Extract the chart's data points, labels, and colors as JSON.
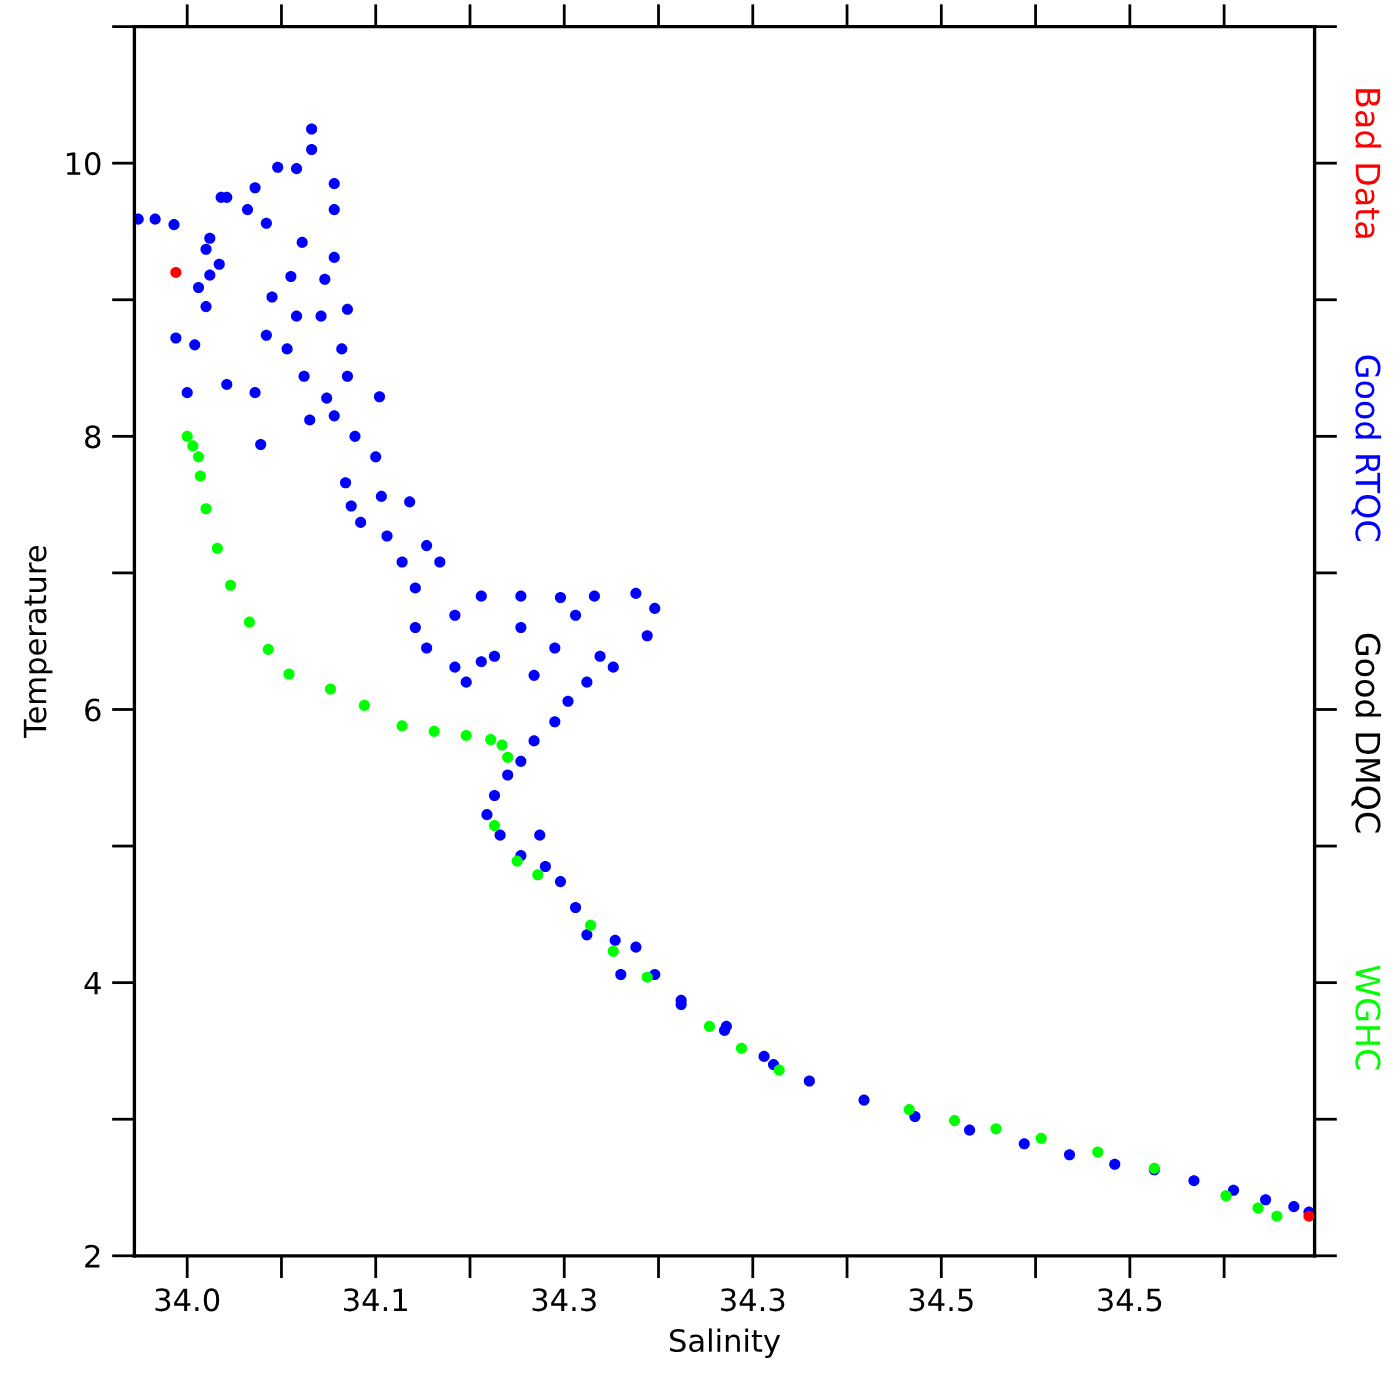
{
  "chart_data": {
    "type": "scatter",
    "xlabel": "Salinity",
    "ylabel": "Temperature",
    "xlim": [
      34.022,
      34.648
    ],
    "ylim": [
      2,
      11
    ],
    "xticks": [
      {
        "value": 34.05,
        "label": "34.0"
      },
      {
        "value": 34.1,
        "label": null
      },
      {
        "value": 34.15,
        "label": "34.1"
      },
      {
        "value": 34.2,
        "label": null
      },
      {
        "value": 34.25,
        "label": "34.3"
      },
      {
        "value": 34.3,
        "label": null
      },
      {
        "value": 34.35,
        "label": "34.3"
      },
      {
        "value": 34.4,
        "label": null
      },
      {
        "value": 34.45,
        "label": "34.5"
      },
      {
        "value": 34.5,
        "label": null
      },
      {
        "value": 34.55,
        "label": "34.5"
      },
      {
        "value": 34.6,
        "label": null
      }
    ],
    "yticks": [
      2,
      {
        "value": 3,
        "label": null
      },
      4,
      {
        "value": 5,
        "label": null
      },
      6,
      {
        "value": 7,
        "label": null
      },
      8,
      {
        "value": 9,
        "label": null
      },
      10,
      {
        "value": 11,
        "label": null
      }
    ],
    "marker": "circle",
    "legend": "right",
    "series": [
      {
        "name": "Bad Data",
        "color": "#ff0000",
        "x": [
          34.044,
          34.645
        ],
        "values": [
          9.2,
          2.29
        ]
      },
      {
        "name": "Good RTQC",
        "color": "#0000ff",
        "x": [
          34.024,
          34.033,
          34.043,
          34.062,
          34.06,
          34.068,
          34.071,
          34.086,
          34.098,
          34.108,
          34.116,
          34.116,
          34.128,
          34.128,
          34.082,
          34.092,
          34.111,
          34.128,
          34.105,
          34.095,
          34.108,
          34.121,
          34.092,
          34.103,
          34.135,
          34.132,
          34.112,
          34.071,
          34.086,
          34.05,
          34.044,
          34.054,
          34.06,
          34.056,
          34.067,
          34.062,
          34.089,
          34.115,
          34.124,
          34.135,
          34.128,
          34.139,
          34.134,
          34.15,
          34.153,
          34.168,
          34.137,
          34.142,
          34.156,
          34.164,
          34.177,
          34.171,
          34.184,
          34.171,
          34.177,
          34.192,
          34.206,
          34.227,
          34.248,
          34.266,
          34.288,
          34.298,
          34.294,
          34.269,
          34.245,
          34.213,
          34.192,
          34.227,
          34.256,
          34.276,
          34.152,
          34.123,
          34.262,
          34.252,
          34.245,
          34.234,
          34.227,
          34.22,
          34.213,
          34.209,
          34.216,
          34.227,
          34.237,
          34.24,
          34.248,
          34.256,
          34.262,
          34.277,
          34.288,
          34.28,
          34.298,
          34.312,
          34.336,
          34.198,
          34.234,
          34.206,
          34.312,
          34.335,
          34.356,
          34.361,
          34.38,
          34.409,
          34.436,
          34.465,
          34.494,
          34.518,
          34.542,
          34.563,
          34.584,
          34.605,
          34.622,
          34.637,
          34.645
        ],
        "values": [
          9.59,
          9.59,
          9.55,
          9.45,
          9.37,
          9.75,
          9.75,
          9.82,
          9.97,
          9.96,
          10.25,
          10.1,
          9.85,
          9.66,
          9.66,
          9.56,
          9.42,
          9.31,
          9.17,
          9.02,
          8.88,
          8.88,
          8.74,
          8.64,
          8.93,
          8.64,
          8.44,
          8.38,
          8.32,
          8.32,
          8.72,
          8.67,
          8.95,
          9.09,
          9.26,
          9.18,
          7.94,
          8.12,
          8.28,
          8.44,
          8.15,
          8.0,
          7.66,
          7.85,
          7.56,
          7.52,
          7.49,
          7.37,
          7.27,
          7.08,
          7.2,
          6.89,
          7.08,
          6.6,
          6.45,
          6.69,
          6.83,
          6.83,
          6.82,
          6.83,
          6.85,
          6.74,
          6.54,
          6.39,
          6.45,
          6.39,
          6.31,
          6.6,
          6.69,
          6.31,
          8.29,
          9.15,
          6.2,
          6.06,
          5.91,
          5.77,
          5.62,
          5.52,
          5.37,
          5.23,
          5.08,
          4.93,
          5.08,
          4.85,
          4.74,
          4.55,
          4.35,
          4.31,
          4.26,
          4.06,
          4.06,
          3.87,
          3.68,
          6.2,
          6.25,
          6.35,
          3.84,
          3.65,
          3.46,
          3.4,
          3.28,
          3.14,
          3.02,
          2.92,
          2.82,
          2.74,
          2.67,
          2.63,
          2.55,
          2.48,
          2.41,
          2.36,
          2.32
        ]
      },
      {
        "name": "Good DMQC",
        "color": "#000000"
      },
      {
        "name": "WGHC",
        "color": "#00ff00",
        "x": [
          34.05,
          34.053,
          34.056,
          34.057,
          34.06,
          34.066,
          34.073,
          34.083,
          34.093,
          34.104,
          34.126,
          34.144,
          34.164,
          34.181,
          34.198,
          34.211,
          34.217,
          34.22,
          34.213,
          34.225,
          34.236,
          34.264,
          34.276,
          34.294,
          34.327,
          34.344,
          34.364,
          34.433,
          34.457,
          34.479,
          34.503,
          34.533,
          34.563,
          34.601,
          34.618,
          34.628
        ],
        "values": [
          8.0,
          7.93,
          7.85,
          7.71,
          7.47,
          7.18,
          6.91,
          6.64,
          6.44,
          6.26,
          6.15,
          6.03,
          5.88,
          5.84,
          5.81,
          5.78,
          5.74,
          5.65,
          5.15,
          4.89,
          4.79,
          4.42,
          4.23,
          4.04,
          3.68,
          3.52,
          3.36,
          3.07,
          2.99,
          2.93,
          2.86,
          2.76,
          2.64,
          2.44,
          2.35,
          2.29
        ]
      }
    ]
  }
}
